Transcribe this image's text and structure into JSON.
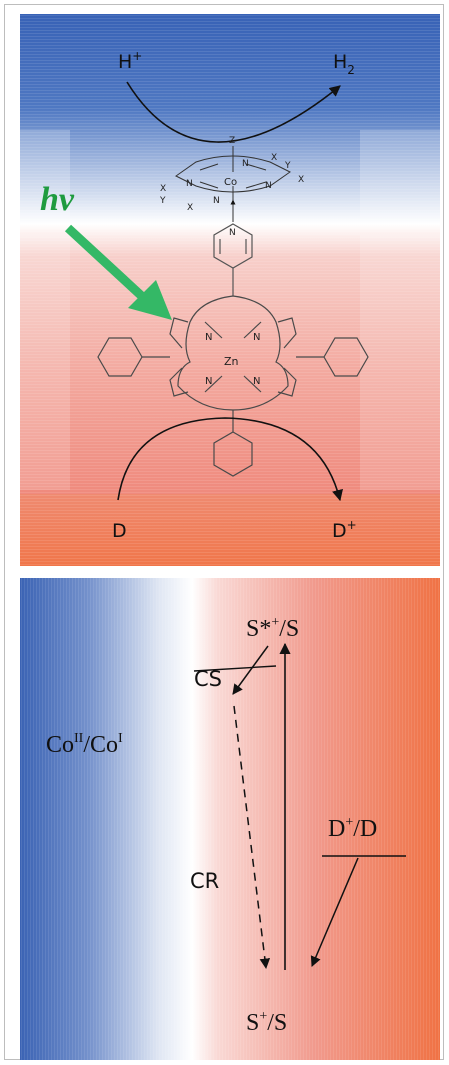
{
  "colors": {
    "blue": "#3c66b8",
    "red_light": "#f6c2bd",
    "red": "#ef8376",
    "orange": "#f0784a",
    "green_arrow": "#34b866",
    "green_text": "#1f9b3f",
    "line": "#111111"
  },
  "top_panel": {
    "h_plus": "H",
    "h_plus_sup": "+",
    "h2": "H",
    "h2_sub": "2",
    "hv": "hv",
    "d_label": "D",
    "d_plus": "D",
    "d_plus_sup": "+",
    "atoms": {
      "z": "Z",
      "co": "Co",
      "n": "N",
      "x": "X",
      "y": "Y",
      "zn": "Zn"
    }
  },
  "bottom_panel": {
    "s_star": "S*",
    "s_star_sup": "+",
    "s_star_tail": "/S",
    "co_base": "Co",
    "co_sup1": "II",
    "co_mid": "/Co",
    "co_sup2": "I",
    "cs": "CS",
    "cr": "CR",
    "dd_base": "D",
    "dd_sup": "+",
    "dd_tail": "/D",
    "s_plus": "S",
    "s_plus_sup": "+",
    "s_plus_tail": "/S"
  }
}
